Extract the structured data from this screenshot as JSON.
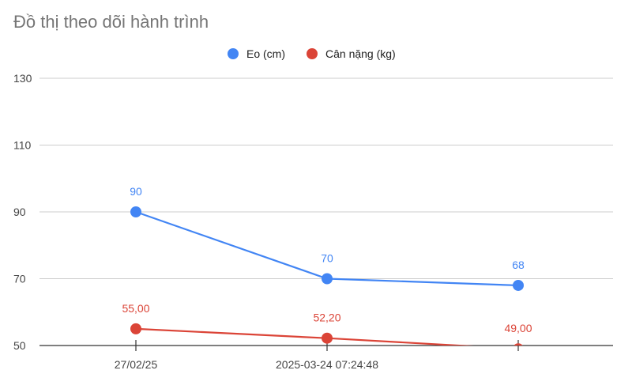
{
  "chart_data": {
    "type": "line",
    "title": "Đồ thị theo dõi hành trình",
    "xlabel": "",
    "ylabel": "",
    "categories": [
      "27/02/25",
      "2025-03-24 07:24:48",
      ""
    ],
    "ylim": [
      50,
      130
    ],
    "yticks": [
      "50",
      "70",
      "90",
      "110",
      "130"
    ],
    "grid": true,
    "legend_position": "top",
    "series": [
      {
        "name": "Eo (cm)",
        "color": "#4285f4",
        "values": [
          90,
          70,
          68
        ],
        "labels": [
          "90",
          "70",
          "68"
        ]
      },
      {
        "name": "Cân nặng (kg)",
        "color": "#db4437",
        "values": [
          55,
          52.2,
          49
        ],
        "labels": [
          "55,00",
          "52,20",
          "49,00"
        ]
      }
    ]
  }
}
